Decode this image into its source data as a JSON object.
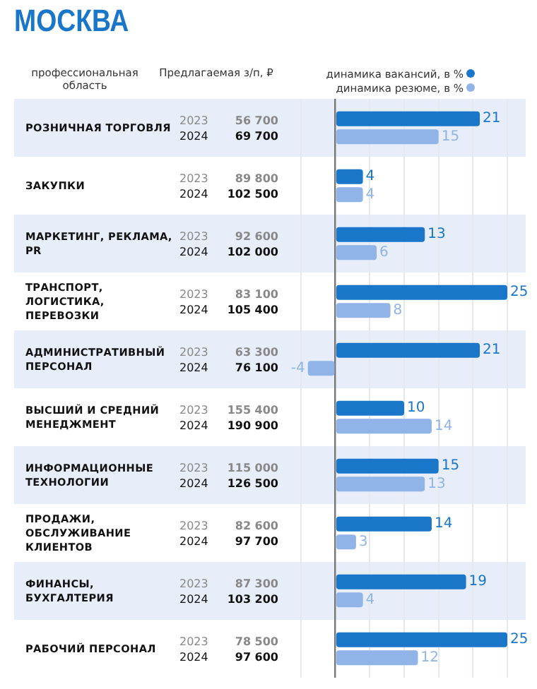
{
  "chart_data": {
    "type": "bar",
    "orientation": "horizontal",
    "title": "МОСКВА",
    "categories": [
      "РОЗНИЧНАЯ ТОРГОВЛЯ",
      "ЗАКУПКИ",
      "МАРКЕТИНГ, РЕКЛАМА, PR",
      "ТРАНСПОРТ, ЛОГИСТИКА, ПЕРЕВОЗКИ",
      "АДМИНИСТРАТИВНЫЙ ПЕРСОНАЛ",
      "ВЫСШИЙ И СРЕДНИЙ МЕНЕДЖМЕНТ",
      "ИНФОРМАЦИОННЫЕ ТЕХНОЛОГИИ",
      "ПРОДАЖИ, ОБСЛУЖИВАНИЕ КЛИЕНТОВ",
      "ФИНАНСЫ, БУХГАЛТЕРИЯ",
      "РАБОЧИЙ ПЕРСОНАЛ"
    ],
    "series": [
      {
        "name": "динамика вакансий, в %",
        "color": "#1976c9",
        "values": [
          21,
          4,
          13,
          25,
          21,
          10,
          15,
          14,
          19,
          25
        ]
      },
      {
        "name": "динамика резюме, в %",
        "color": "#90b3e8",
        "values": [
          15,
          4,
          6,
          8,
          -4,
          14,
          13,
          3,
          4,
          12
        ]
      }
    ],
    "grid": "x",
    "tick_labels": false,
    "data_labels": true,
    "legend": "top",
    "annotations": [
      "профессиональная область",
      "Предлагаемая з/п, ₽",
      "2023 56 700",
      "2024 69 700",
      "2023 89 800",
      "2024 102 500",
      "2023 92 600",
      "2024 102 000",
      "2023 83 100",
      "2024 105 400",
      "2023 63 300",
      "2024 76 100",
      "2023 155 400",
      "2024 190 900",
      "2023 115 000",
      "2024 126 500",
      "2023 82 600",
      "2024 97 700",
      "2023 87 300",
      "2024 103 200",
      "2023 78 500",
      "2024 97 600"
    ]
  }
}
